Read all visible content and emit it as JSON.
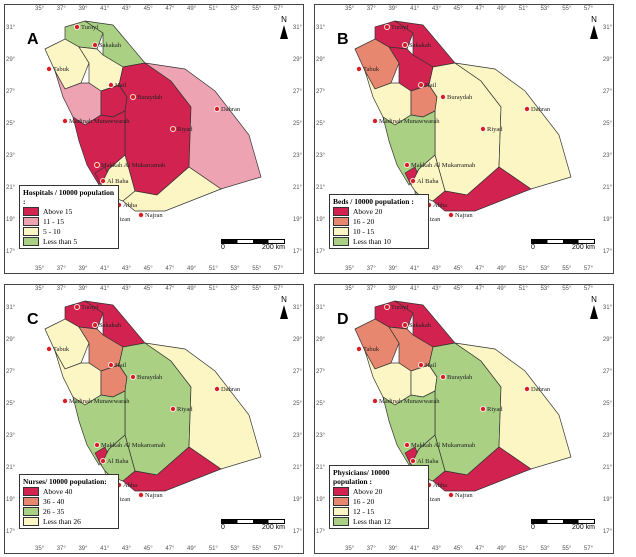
{
  "colors": {
    "c_red": "#d2224f",
    "c_salmon": "#e8876f",
    "c_pink": "#eea3b3",
    "c_cream": "#fbf6c3",
    "c_green": "#a9d083",
    "dot": "#d81f26"
  },
  "axes": {
    "lon_ticks": [
      "35°",
      "37°",
      "39°",
      "41°",
      "43°",
      "45°",
      "47°",
      "49°",
      "51°",
      "53°",
      "55°",
      "57°"
    ],
    "lat_ticks": [
      "31°",
      "29°",
      "27°",
      "25°",
      "23°",
      "21°",
      "19°",
      "17°"
    ]
  },
  "scale": {
    "zero": "0",
    "distance": "200 km"
  },
  "north_label": "N",
  "panels": [
    {
      "label": "A",
      "legend_title": "Hospitals / 10000 population :",
      "legend_items": [
        {
          "label": "Above 15",
          "color": "#d2224f"
        },
        {
          "label": "11 - 15",
          "color": "#eea3b3"
        },
        {
          "label": "5 - 10",
          "color": "#fbf6c3"
        },
        {
          "label": "Less than 5",
          "color": "#a9d083"
        }
      ],
      "regions": {
        "jawf": "#a9d083",
        "hudud": "#a9d083",
        "tabuk": "#fbf6c3",
        "hail": "#fbf6c3",
        "madinah": "#eea3b3",
        "qassim": "#d2224f",
        "riyadh": "#d2224f",
        "east": "#eea3b3",
        "makkah": "#d2224f",
        "baha": "#d2224f",
        "asir": "#fbf6c3",
        "jizan": "#d2224f",
        "najran": "#fbf6c3"
      }
    },
    {
      "label": "B",
      "legend_title": "Beds / 10000 population :",
      "legend_items": [
        {
          "label": "Above 20",
          "color": "#d2224f"
        },
        {
          "label": "16 - 20",
          "color": "#e8876f"
        },
        {
          "label": "10 - 15",
          "color": "#fbf6c3"
        },
        {
          "label": "Less than 10",
          "color": "#a9d083"
        }
      ],
      "regions": {
        "jawf": "#d2224f",
        "hudud": "#d2224f",
        "tabuk": "#e8876f",
        "hail": "#d2224f",
        "madinah": "#fbf6c3",
        "qassim": "#e8876f",
        "riyadh": "#fbf6c3",
        "east": "#fbf6c3",
        "makkah": "#a9d083",
        "baha": "#d2224f",
        "asir": "#fbf6c3",
        "jizan": "#a9d083",
        "najran": "#d2224f"
      }
    },
    {
      "label": "C",
      "legend_title": "Nurses/ 10000 population:",
      "legend_items": [
        {
          "label": "Above 40",
          "color": "#d2224f"
        },
        {
          "label": "36 - 40",
          "color": "#e8876f"
        },
        {
          "label": "26 - 35",
          "color": "#a9d083"
        },
        {
          "label": "Less than 26",
          "color": "#fbf6c3"
        }
      ],
      "regions": {
        "jawf": "#d2224f",
        "hudud": "#d2224f",
        "tabuk": "#fbf6c3",
        "hail": "#e8876f",
        "madinah": "#fbf6c3",
        "qassim": "#e8876f",
        "riyadh": "#a9d083",
        "east": "#fbf6c3",
        "makkah": "#a9d083",
        "baha": "#d2224f",
        "asir": "#a9d083",
        "jizan": "#fbf6c3",
        "najran": "#d2224f"
      }
    },
    {
      "label": "D",
      "legend_title": "Physicians/ 10000 population :",
      "legend_items": [
        {
          "label": "Above 20",
          "color": "#d2224f"
        },
        {
          "label": "16 - 20",
          "color": "#e8876f"
        },
        {
          "label": "12 - 15",
          "color": "#fbf6c3"
        },
        {
          "label": "Less than 12",
          "color": "#a9d083"
        }
      ],
      "regions": {
        "jawf": "#d2224f",
        "hudud": "#d2224f",
        "tabuk": "#e8876f",
        "hail": "#e8876f",
        "madinah": "#fbf6c3",
        "qassim": "#fbf6c3",
        "riyadh": "#a9d083",
        "east": "#fbf6c3",
        "makkah": "#a9d083",
        "baha": "#d2224f",
        "asir": "#a9d083",
        "jizan": "#fbf6c3",
        "najran": "#d2224f"
      }
    }
  ],
  "cities": [
    "Turayf",
    "Sakakah",
    "Tabuk",
    "Hail",
    "Buraydah",
    "Madinah Munawwarah",
    "Riyad",
    "Dahran",
    "Makkah Al Mukarramah",
    "Al Baha",
    "Abha",
    "Najran",
    "Jizan"
  ]
}
